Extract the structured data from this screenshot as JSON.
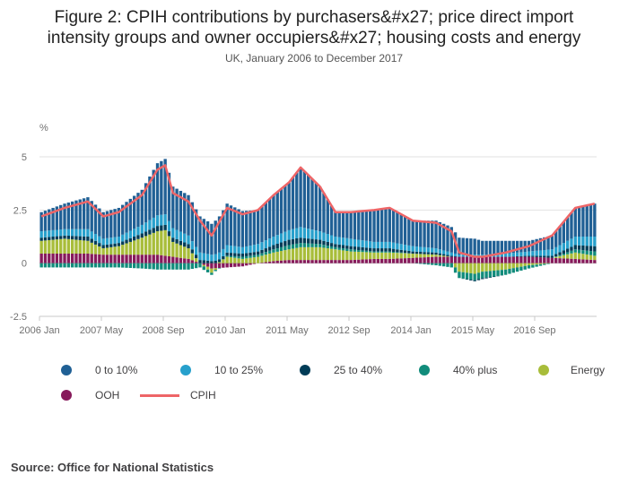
{
  "title_line1": "Figure 2: CPIH contributions by purchasers&#x27; price direct import",
  "title_line2": "intensity groups and owner occupiers&#x27; housing costs and energy",
  "subtitle": "UK, January 2006 to December 2017",
  "source": "Source: Office for National Statistics",
  "colors": {
    "s0to10": "#206095",
    "s10to25": "#27a0cc",
    "s25to40": "#003c57",
    "s40plus": "#118c7b",
    "energy": "#a8bd3a",
    "ooh": "#871a5b",
    "cpih": "#ee6567"
  },
  "legend": [
    {
      "label": "0 to 10%",
      "color": "#206095",
      "kind": "dot"
    },
    {
      "label": "10 to 25%",
      "color": "#27a0cc",
      "kind": "dot"
    },
    {
      "label": "25 to 40%",
      "color": "#003c57",
      "kind": "dot"
    },
    {
      "label": "40% plus",
      "color": "#118c7b",
      "kind": "dot"
    },
    {
      "label": "Energy",
      "color": "#a8bd3a",
      "kind": "dot"
    },
    {
      "label": "OOH",
      "color": "#871a5b",
      "kind": "dot"
    },
    {
      "label": "CPIH",
      "color": "#ee6567",
      "kind": "line"
    }
  ],
  "chart_data": {
    "type": "bar",
    "stacked": true,
    "title": "Figure 2: CPIH contributions by purchasers&#x27; price direct import intensity groups and owner occupiers&#x27; housing costs and energy",
    "subtitle": "UK, January 2006 to December 2017",
    "ylabel": "%",
    "ylim": [
      -2.5,
      5
    ],
    "yticks": [
      -2.5,
      0,
      2.5,
      5
    ],
    "x_tick_labels": [
      "2006 Jan",
      "2007 May",
      "2008 Sep",
      "2010 Jan",
      "2011 May",
      "2012 Sep",
      "2014 Jan",
      "2015 May",
      "2016 Sep"
    ],
    "x_tick_indices": [
      0,
      16,
      32,
      48,
      64,
      80,
      96,
      112,
      128
    ],
    "period": "monthly, January 2006 to December 2017 (144 months)",
    "series_order": [
      "0 to 10%",
      "10 to 25%",
      "25 to 40%",
      "40% plus",
      "Energy",
      "OOH",
      "CPIH"
    ],
    "anchors": {
      "month_index": [
        0,
        6,
        12,
        16,
        20,
        26,
        30,
        32,
        34,
        38,
        41,
        44,
        48,
        52,
        56,
        60,
        64,
        67,
        72,
        76,
        80,
        86,
        90,
        96,
        102,
        106,
        108,
        112,
        114,
        120,
        126,
        132,
        138,
        143
      ],
      "CPIH": [
        2.2,
        2.6,
        2.9,
        2.2,
        2.4,
        3.2,
        4.4,
        4.6,
        3.3,
        2.9,
        2.0,
        1.3,
        2.6,
        2.3,
        2.5,
        3.2,
        3.8,
        4.5,
        3.6,
        2.4,
        2.4,
        2.5,
        2.6,
        2.0,
        1.9,
        1.5,
        0.5,
        0.3,
        0.3,
        0.5,
        0.8,
        1.3,
        2.6,
        2.8
      ],
      "0 to 10%": [
        1.0,
        1.1,
        1.2,
        1.0,
        1.1,
        1.3,
        1.4,
        1.4,
        1.3,
        1.3,
        1.2,
        1.0,
        1.0,
        1.1,
        1.1,
        1.2,
        1.3,
        1.4,
        1.3,
        1.3,
        1.3,
        1.3,
        1.3,
        1.2,
        1.1,
        1.0,
        1.0,
        1.0,
        1.0,
        1.0,
        1.0,
        1.0,
        1.1,
        1.1
      ],
      "10 to 25%": [
        0.3,
        0.3,
        0.35,
        0.3,
        0.3,
        0.4,
        0.5,
        0.5,
        0.45,
        0.4,
        0.35,
        0.3,
        0.35,
        0.3,
        0.35,
        0.4,
        0.45,
        0.5,
        0.4,
        0.35,
        0.35,
        0.3,
        0.3,
        0.25,
        0.2,
        0.15,
        0.1,
        0.1,
        0.1,
        0.15,
        0.2,
        0.3,
        0.4,
        0.45
      ],
      "25 to 40%": [
        0.15,
        0.15,
        0.2,
        0.15,
        0.15,
        0.2,
        0.25,
        0.25,
        0.2,
        0.2,
        0.15,
        0.1,
        0.15,
        0.15,
        0.15,
        0.2,
        0.25,
        0.25,
        0.2,
        0.15,
        0.15,
        0.15,
        0.15,
        0.1,
        0.1,
        0.05,
        0.0,
        -0.05,
        -0.05,
        0.0,
        0.05,
        0.1,
        0.2,
        0.25
      ],
      "40% plus": [
        -0.2,
        -0.2,
        -0.2,
        -0.2,
        -0.2,
        -0.25,
        -0.3,
        -0.3,
        -0.3,
        -0.3,
        -0.2,
        -0.1,
        0.05,
        0.1,
        0.1,
        0.15,
        0.2,
        0.2,
        0.15,
        0.1,
        0.1,
        0.05,
        0.05,
        0.0,
        -0.1,
        -0.2,
        -0.3,
        -0.3,
        -0.3,
        -0.25,
        -0.15,
        0.0,
        0.15,
        0.2
      ],
      "Energy": [
        0.6,
        0.7,
        0.6,
        0.3,
        0.4,
        0.8,
        1.1,
        1.2,
        0.7,
        0.5,
        0.0,
        -0.2,
        0.3,
        0.2,
        0.3,
        0.4,
        0.5,
        0.6,
        0.6,
        0.5,
        0.4,
        0.3,
        0.3,
        0.2,
        0.1,
        0.0,
        -0.4,
        -0.5,
        -0.4,
        -0.3,
        -0.1,
        0.0,
        0.3,
        0.2
      ],
      "OOH": [
        0.45,
        0.45,
        0.45,
        0.4,
        0.4,
        0.4,
        0.4,
        0.35,
        0.3,
        0.2,
        0.0,
        -0.25,
        -0.2,
        -0.15,
        0.0,
        0.1,
        0.15,
        0.15,
        0.15,
        0.15,
        0.15,
        0.2,
        0.2,
        0.25,
        0.3,
        0.3,
        0.3,
        0.3,
        0.3,
        0.3,
        0.3,
        0.25,
        0.2,
        0.15
      ]
    }
  }
}
